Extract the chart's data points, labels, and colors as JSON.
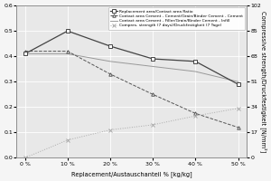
{
  "x": [
    0,
    10,
    20,
    30,
    40,
    50
  ],
  "x_labels": [
    "0 %",
    "10 %",
    "20 %",
    "30 %",
    "40 %",
    "50 %"
  ],
  "line1_y": [
    0.41,
    0.5,
    0.44,
    0.39,
    0.38,
    0.29
  ],
  "line2_y": [
    0.42,
    0.42,
    0.33,
    0.25,
    0.175,
    0.12
  ],
  "line3_y": [
    0.41,
    0.41,
    0.38,
    0.36,
    0.34,
    0.3
  ],
  "line4_y": [
    0.0,
    0.07,
    0.11,
    0.13,
    0.165,
    0.195
  ],
  "ylim_left": [
    0.0,
    0.6
  ],
  "ylim_right": [
    0,
    102
  ],
  "yticks_left": [
    0.0,
    0.1,
    0.2,
    0.3,
    0.4,
    0.5,
    0.6
  ],
  "yticks_right": [
    0,
    17,
    34,
    51,
    68,
    85,
    102
  ],
  "line1_color": "#444444",
  "line2_color": "#555555",
  "line3_color": "#999999",
  "line4_color": "#aaaaaa",
  "xlabel": "Replacement/Austauschanteil % [kg/kg]",
  "ylabel_right": "Compressive strength/Druckfestigkeit [N/mm²]",
  "legend": [
    "Replacement area/Contact area Ratio",
    "Contact area Cement - Cement/Grain/Binder Cement - Cement",
    "Contact area Cement - Filler/Grain/Binder Cement - Infill",
    "Compres. strength (7 days)/Druckfestigkeit (7 Tage)"
  ],
  "legend_fontsize": 3.2,
  "tick_fontsize": 4.5,
  "axis_label_fontsize": 4.8,
  "background_color": "#e8e8e8",
  "fig_bg_color": "#f5f5f5"
}
